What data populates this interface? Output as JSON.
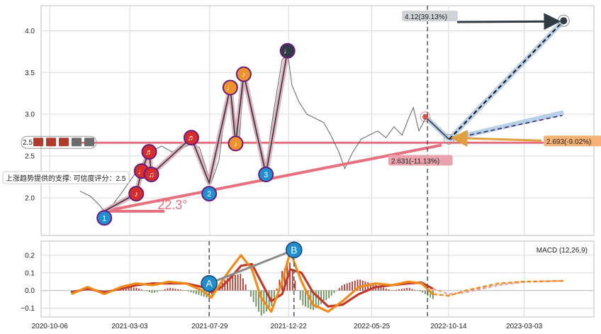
{
  "chart_data": [
    {
      "type": "line",
      "panel": "price",
      "ylim": [
        1.55,
        4.3
      ],
      "y_ticks": [
        2.0,
        2.5,
        3.0,
        3.5,
        4.0
      ],
      "y_tick_labels": [
        "2.0",
        "2.5",
        "3.0",
        "3.5",
        "4.0"
      ],
      "grid": true,
      "series": [
        {
          "role": "price",
          "color": "#5a6470",
          "points": [
            [
              "2020-12-01",
              2.08
            ],
            [
              "2020-12-20",
              2.02
            ],
            [
              "2021-01-05",
              1.92
            ],
            [
              "2021-01-15",
              1.84
            ],
            [
              "2021-02-01",
              1.93
            ],
            [
              "2021-02-15",
              2.05
            ],
            [
              "2021-03-01",
              2.18
            ],
            [
              "2021-03-20",
              2.35
            ],
            [
              "2021-04-05",
              2.5
            ],
            [
              "2021-04-20",
              2.58
            ],
            [
              "2021-05-01",
              2.62
            ],
            [
              "2021-05-20",
              2.55
            ],
            [
              "2021-06-10",
              2.6
            ],
            [
              "2021-06-25",
              2.65
            ],
            [
              "2021-07-10",
              2.6
            ],
            [
              "2021-07-25",
              2.3
            ],
            [
              "2021-08-01",
              2.18
            ],
            [
              "2021-08-15",
              2.45
            ],
            [
              "2021-08-25",
              2.95
            ],
            [
              "2021-09-05",
              3.3
            ],
            [
              "2021-09-15",
              2.85
            ],
            [
              "2021-09-22",
              2.7
            ],
            [
              "2021-09-30",
              3.45
            ],
            [
              "2021-10-10",
              3.2
            ],
            [
              "2021-10-20",
              2.8
            ],
            [
              "2021-11-01",
              2.6
            ],
            [
              "2021-11-10",
              2.35
            ],
            [
              "2021-11-20",
              2.85
            ],
            [
              "2021-12-01",
              3.3
            ],
            [
              "2021-12-10",
              3.65
            ],
            [
              "2021-12-20",
              3.75
            ],
            [
              "2021-12-28",
              3.35
            ],
            [
              "2022-01-10",
              3.15
            ],
            [
              "2022-01-25",
              3.0
            ],
            [
              "2022-02-10",
              2.95
            ],
            [
              "2022-02-25",
              2.9
            ],
            [
              "2022-03-10",
              2.75
            ],
            [
              "2022-03-25",
              2.55
            ],
            [
              "2022-04-05",
              2.35
            ],
            [
              "2022-04-20",
              2.55
            ],
            [
              "2022-05-05",
              2.7
            ],
            [
              "2022-05-20",
              2.75
            ],
            [
              "2022-06-05",
              2.8
            ],
            [
              "2022-06-20",
              2.72
            ],
            [
              "2022-07-05",
              2.85
            ],
            [
              "2022-07-20",
              2.75
            ],
            [
              "2022-08-01",
              2.95
            ],
            [
              "2022-08-10",
              3.08
            ],
            [
              "2022-08-20",
              2.8
            ],
            [
              "2022-09-01",
              2.95
            ]
          ]
        },
        {
          "role": "zigzag",
          "color": "#333333",
          "points": [
            [
              "2021-01-15",
              1.84
            ],
            [
              "2021-03-15",
              2.05
            ],
            [
              "2021-03-25",
              2.32
            ],
            [
              "2021-04-08",
              2.55
            ],
            [
              "2021-04-12",
              2.28
            ],
            [
              "2021-06-25",
              2.72
            ],
            [
              "2021-07-28",
              2.18
            ],
            [
              "2021-09-05",
              3.32
            ],
            [
              "2021-09-15",
              2.65
            ],
            [
              "2021-09-30",
              3.48
            ],
            [
              "2021-11-10",
              2.28
            ],
            [
              "2021-12-20",
              3.76
            ]
          ]
        }
      ],
      "markers": [
        {
          "label": "1",
          "date": "2021-01-15",
          "value": 1.76,
          "color": "#1f8fd1"
        },
        {
          "label": "2",
          "date": "2021-07-28",
          "value": 2.05,
          "color": "#1f8fd1"
        },
        {
          "label": "3",
          "date": "2021-11-10",
          "value": 2.28,
          "color": "#1f8fd1"
        },
        {
          "label": "♪",
          "date": "2021-03-15",
          "value": 2.05,
          "color": "#d62d2d"
        },
        {
          "label": "♩",
          "date": "2021-03-25",
          "value": 2.32,
          "color": "#d62d2d"
        },
        {
          "label": "♫",
          "date": "2021-04-12",
          "value": 2.28,
          "color": "#d62d2d"
        },
        {
          "label": "♬",
          "date": "2021-04-08",
          "value": 2.55,
          "color": "#d62d2d"
        },
        {
          "label": "♬",
          "date": "2021-06-25",
          "value": 2.72,
          "color": "#d62d2d"
        },
        {
          "label": "♩",
          "date": "2021-09-05",
          "value": 3.32,
          "color": "#f0922b"
        },
        {
          "label": "♪",
          "date": "2021-09-15",
          "value": 2.65,
          "color": "#f0922b"
        },
        {
          "label": "♪",
          "date": "2021-09-30",
          "value": 3.48,
          "color": "#f0922b"
        },
        {
          "label": "♩",
          "date": "2021-12-20",
          "value": 3.76,
          "color": "#2f3b45"
        }
      ],
      "support_line": {
        "start": [
          "2021-01-15",
          1.84
        ],
        "end": [
          "2022-10-01",
          2.631
        ],
        "color": "#e8707e"
      },
      "horizontal_line": {
        "value": 2.66,
        "start": "2020-11-15",
        "end": "2023-05-15",
        "color": "#e8707e"
      },
      "angle_label": "22.3°",
      "support_label": "上涨趋势提供的支撑: 可信度评分：2.5",
      "axis_mark_label": "2.5",
      "current_point": {
        "date": "2022-09-01",
        "value": 2.97
      },
      "pivot_point": {
        "date": "2022-10-15",
        "value": 2.7
      },
      "projection": {
        "high": {
          "date": "2023-05-15",
          "value": 4.12,
          "label": "4.12(39.13%)"
        },
        "mid": {
          "date": "2023-05-15",
          "value": 3.02
        },
        "low": {
          "label": "2.693(-9.02%)",
          "value": 2.693
        },
        "support_label": "2.631(-11.13%)",
        "support_value": 2.631
      },
      "vertical_line_date": "2022-09-05"
    },
    {
      "type": "line",
      "panel": "macd",
      "title": "MACD (12,26,9)",
      "ylim": [
        -0.15,
        0.28
      ],
      "y_ticks": [
        -0.1,
        0.0,
        0.1,
        0.2
      ],
      "y_tick_labels": [
        "−0.1",
        "0.0",
        "0.1",
        "0.2"
      ],
      "grid": true,
      "markers": [
        {
          "label": "A",
          "date": "2021-07-28",
          "value": 0.04,
          "color": "#1f8fd1"
        },
        {
          "label": "B",
          "date": "2022-01-01",
          "value": 0.23,
          "color": "#1f8fd1"
        }
      ],
      "vertical_line_dates": [
        "2021-07-28",
        "2022-01-01",
        "2022-09-05"
      ],
      "macd": [
        [
          "2020-11-15",
          -0.02
        ],
        [
          "2020-12-15",
          0.02
        ],
        [
          "2021-01-15",
          -0.02
        ],
        [
          "2021-02-15",
          0.02
        ],
        [
          "2021-03-15",
          0.04
        ],
        [
          "2021-04-15",
          0.03
        ],
        [
          "2021-05-15",
          0.05
        ],
        [
          "2021-06-15",
          0.04
        ],
        [
          "2021-07-15",
          0.0
        ],
        [
          "2021-08-01",
          -0.04
        ],
        [
          "2021-08-20",
          0.05
        ],
        [
          "2021-09-05",
          0.12
        ],
        [
          "2021-09-25",
          0.2
        ],
        [
          "2021-10-15",
          0.12
        ],
        [
          "2021-11-01",
          -0.04
        ],
        [
          "2021-11-20",
          -0.12
        ],
        [
          "2021-12-10",
          0.05
        ],
        [
          "2021-12-25",
          0.22
        ],
        [
          "2022-01-15",
          0.05
        ],
        [
          "2022-02-05",
          -0.08
        ],
        [
          "2022-03-05",
          -0.12
        ],
        [
          "2022-04-01",
          -0.06
        ],
        [
          "2022-05-01",
          0.02
        ],
        [
          "2022-06-01",
          0.04
        ],
        [
          "2022-07-01",
          0.03
        ],
        [
          "2022-08-01",
          0.05
        ],
        [
          "2022-08-25",
          0.04
        ],
        [
          "2022-09-15",
          -0.02
        ],
        [
          "2022-10-15",
          -0.03
        ],
        [
          "2022-11-15",
          0.0
        ],
        [
          "2022-12-15",
          0.02
        ],
        [
          "2023-01-15",
          0.04
        ],
        [
          "2023-03-01",
          0.05
        ],
        [
          "2023-05-15",
          0.055
        ]
      ],
      "signal": [
        [
          "2020-11-15",
          -0.01
        ],
        [
          "2020-12-15",
          0.01
        ],
        [
          "2021-01-15",
          -0.01
        ],
        [
          "2021-02-15",
          0.01
        ],
        [
          "2021-03-15",
          0.03
        ],
        [
          "2021-04-15",
          0.04
        ],
        [
          "2021-05-15",
          0.04
        ],
        [
          "2021-06-15",
          0.04
        ],
        [
          "2021-07-15",
          0.02
        ],
        [
          "2021-08-01",
          -0.01
        ],
        [
          "2021-08-20",
          0.02
        ],
        [
          "2021-09-05",
          0.07
        ],
        [
          "2021-09-25",
          0.14
        ],
        [
          "2021-10-15",
          0.15
        ],
        [
          "2021-11-01",
          0.05
        ],
        [
          "2021-11-20",
          -0.06
        ],
        [
          "2021-12-10",
          -0.02
        ],
        [
          "2021-12-25",
          0.12
        ],
        [
          "2022-01-15",
          0.1
        ],
        [
          "2022-02-05",
          -0.01
        ],
        [
          "2022-03-05",
          -0.09
        ],
        [
          "2022-04-01",
          -0.08
        ],
        [
          "2022-05-01",
          -0.02
        ],
        [
          "2022-06-01",
          0.02
        ],
        [
          "2022-07-01",
          0.03
        ],
        [
          "2022-08-01",
          0.04
        ],
        [
          "2022-08-25",
          0.045
        ],
        [
          "2022-09-15",
          0.01
        ],
        [
          "2022-10-15",
          -0.02
        ],
        [
          "2022-11-15",
          -0.01
        ],
        [
          "2022-12-15",
          0.01
        ],
        [
          "2023-01-15",
          0.03
        ],
        [
          "2023-03-01",
          0.048
        ],
        [
          "2023-05-15",
          0.055
        ]
      ],
      "macd_color": "#f28a1a",
      "signal_color": "#c0392b"
    }
  ],
  "x_axis": {
    "ticks": [
      "2020-10-06",
      "2021-03-03",
      "2021-07-29",
      "2021-12-22",
      "2022-05-25",
      "2022-10-14",
      "2023-03-03"
    ]
  },
  "colors": {
    "grid": "#d9d9d9",
    "frame": "#bdbdbd",
    "up_bar": "#b03a2e",
    "down_bar": "#6b8e5a",
    "dash_line": "#4a5a6a",
    "projection_fill": "#b8cfe8"
  }
}
